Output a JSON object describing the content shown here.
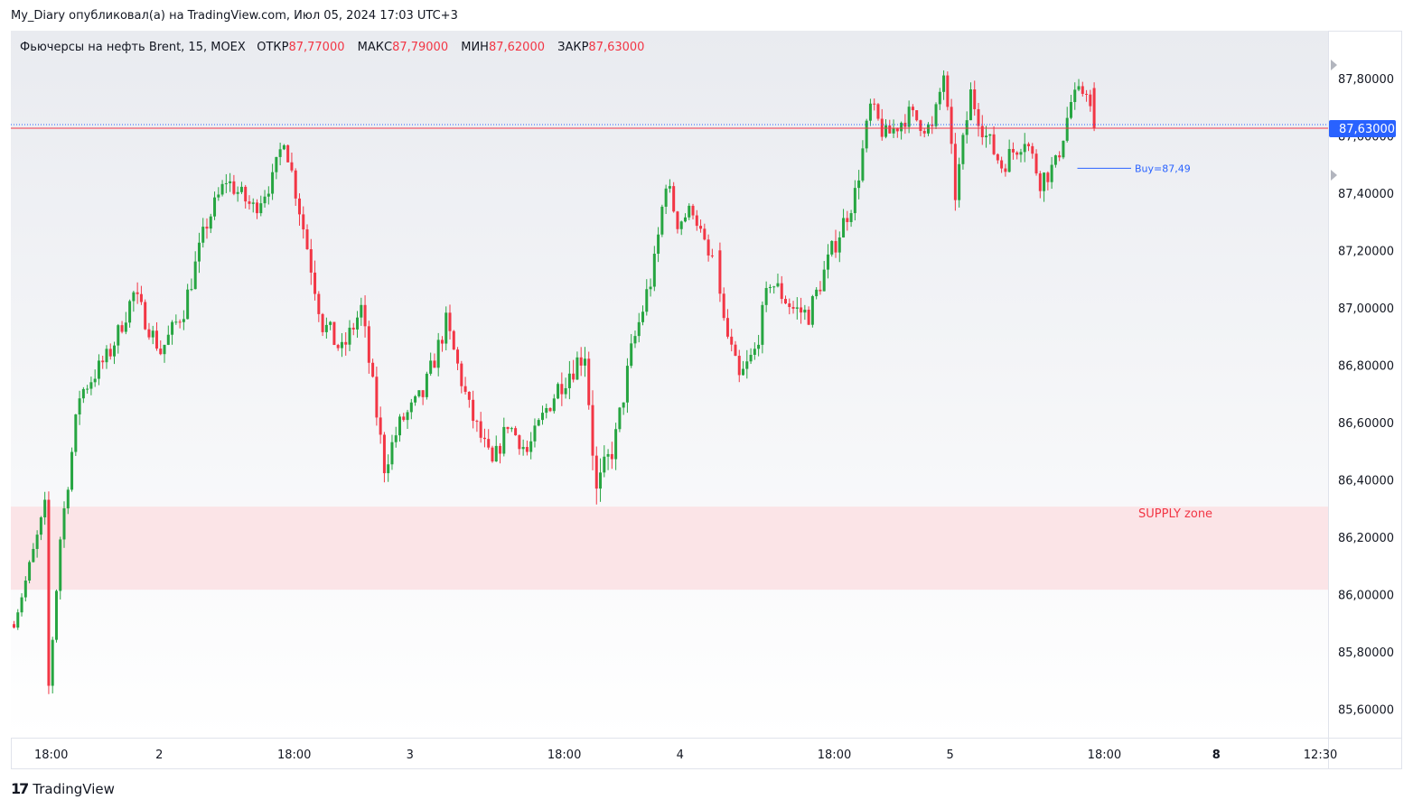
{
  "header": {
    "text": "My_Diary опубликовал(а) на TradingView.com, Июл 05, 2024 17:03 UTC+3"
  },
  "legend": {
    "symbol": "Фьючерсы на нефть Brent, 15, MOEX",
    "open_label": "ОТКР",
    "open_value": "87,77000",
    "high_label": "МАКС",
    "high_value": "87,79000",
    "low_label": "МИН",
    "low_value": "87,62000",
    "close_label": "ЗАКР",
    "close_value": "87,63000"
  },
  "footer": {
    "logo_mark": "17",
    "logo_text": "TradingView"
  },
  "colors": {
    "up": "#26a541",
    "down": "#f23645",
    "supply_zone": "#fbe4e7",
    "supply_text": "#f23645",
    "buy_line": "#2962ff",
    "price_badge": "#2962ff",
    "grid_bg_top": "#e9ebf0"
  },
  "chart_data": {
    "type": "candlestick",
    "title": "Фьючерсы на нефть Brent, 15, MOEX",
    "ylim": [
      85.5,
      87.9
    ],
    "y_ticks": [
      {
        "value": 87.8,
        "label": "87,80000"
      },
      {
        "value": 87.6,
        "label": "87,60000"
      },
      {
        "value": 87.4,
        "label": "87,40000"
      },
      {
        "value": 87.2,
        "label": "87,20000"
      },
      {
        "value": 87.0,
        "label": "87,00000"
      },
      {
        "value": 86.8,
        "label": "86,80000"
      },
      {
        "value": 86.6,
        "label": "86,60000"
      },
      {
        "value": 86.4,
        "label": "86,40000"
      },
      {
        "value": 86.2,
        "label": "86,20000"
      },
      {
        "value": 86.0,
        "label": "86,00000"
      },
      {
        "value": 85.8,
        "label": "85,80000"
      },
      {
        "value": 85.6,
        "label": "85,60000"
      }
    ],
    "x_ticks": [
      {
        "index": 10,
        "label": "18:00",
        "bold": false
      },
      {
        "index": 38,
        "label": "2",
        "bold": false
      },
      {
        "index": 73,
        "label": "18:00",
        "bold": false
      },
      {
        "index": 103,
        "label": "3",
        "bold": false
      },
      {
        "index": 143,
        "label": "18:00",
        "bold": false
      },
      {
        "index": 173,
        "label": "4",
        "bold": false
      },
      {
        "index": 213,
        "label": "18:00",
        "bold": false
      },
      {
        "index": 243,
        "label": "5",
        "bold": false
      },
      {
        "index": 283,
        "label": "18:00",
        "bold": false
      },
      {
        "index": 312,
        "label": "8",
        "bold": true
      },
      {
        "index": 339,
        "label": "12:30",
        "bold": false
      }
    ],
    "current_price": {
      "value": 87.63,
      "label": "87,63000"
    },
    "buy_line": {
      "value": 87.49,
      "label": "Buy=87,49",
      "from_index": 276,
      "to_index": 306
    },
    "supply_zone": {
      "from": 86.02,
      "to": 86.31,
      "label": "SUPPLY zone"
    },
    "waypoints": [
      [
        0,
        85.9,
        0.015
      ],
      [
        8,
        86.3,
        0.05
      ],
      [
        9,
        85.68,
        0.04
      ],
      [
        12,
        86.2,
        0.04
      ],
      [
        17,
        86.7,
        0.05
      ],
      [
        25,
        86.85,
        0.04
      ],
      [
        31,
        87.05,
        0.05
      ],
      [
        38,
        86.85,
        0.04
      ],
      [
        44,
        87.0,
        0.05
      ],
      [
        50,
        87.3,
        0.05
      ],
      [
        55,
        87.45,
        0.04
      ],
      [
        62,
        87.35,
        0.05
      ],
      [
        67,
        87.45,
        0.04
      ],
      [
        70,
        87.6,
        0.04
      ],
      [
        74,
        87.35,
        0.05
      ],
      [
        80,
        86.95,
        0.06
      ],
      [
        85,
        86.85,
        0.05
      ],
      [
        90,
        87.0,
        0.05
      ],
      [
        96,
        86.45,
        0.05
      ],
      [
        100,
        86.6,
        0.04
      ],
      [
        106,
        86.7,
        0.05
      ],
      [
        112,
        86.95,
        0.05
      ],
      [
        118,
        86.65,
        0.05
      ],
      [
        124,
        86.45,
        0.05
      ],
      [
        128,
        86.6,
        0.04
      ],
      [
        133,
        86.5,
        0.04
      ],
      [
        138,
        86.65,
        0.05
      ],
      [
        142,
        86.75,
        0.06
      ],
      [
        148,
        86.85,
        0.06
      ],
      [
        151,
        86.35,
        0.08
      ],
      [
        156,
        86.55,
        0.06
      ],
      [
        160,
        86.85,
        0.05
      ],
      [
        166,
        87.15,
        0.06
      ],
      [
        169,
        87.45,
        0.05
      ],
      [
        172,
        87.3,
        0.04
      ],
      [
        176,
        87.35,
        0.04
      ],
      [
        180,
        87.18,
        0.03
      ],
      [
        182,
        87.18,
        0.03
      ],
      [
        184,
        86.95,
        0.05
      ],
      [
        188,
        86.75,
        0.05
      ],
      [
        192,
        86.85,
        0.05
      ],
      [
        196,
        87.1,
        0.05
      ],
      [
        202,
        87.0,
        0.05
      ],
      [
        206,
        86.98,
        0.05
      ],
      [
        212,
        87.2,
        0.05
      ],
      [
        218,
        87.4,
        0.05
      ],
      [
        222,
        87.7,
        0.05
      ],
      [
        226,
        87.6,
        0.05
      ],
      [
        232,
        87.68,
        0.04
      ],
      [
        238,
        87.62,
        0.05
      ],
      [
        241,
        87.82,
        0.04
      ],
      [
        244,
        87.4,
        0.05
      ],
      [
        248,
        87.75,
        0.05
      ],
      [
        252,
        87.6,
        0.05
      ],
      [
        256,
        87.5,
        0.05
      ],
      [
        262,
        87.6,
        0.05
      ],
      [
        266,
        87.45,
        0.05
      ],
      [
        270,
        87.5,
        0.05
      ],
      [
        274,
        87.72,
        0.05
      ],
      [
        278,
        87.77,
        0.04
      ],
      [
        280,
        87.63,
        0.02
      ]
    ],
    "gap_indices": [
      182
    ]
  }
}
